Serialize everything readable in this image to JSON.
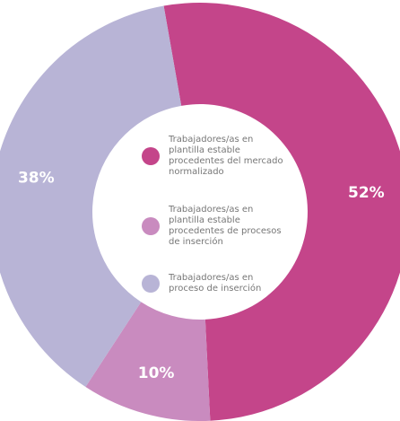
{
  "chart_data": {
    "type": "donut",
    "series": [
      {
        "name": "Trabajadores/as en plantilla estable procedentes del mercado normalizado",
        "color": "#c4458a",
        "values": [
          52
        ],
        "value_labels": [
          "52%"
        ]
      },
      {
        "name": "Trabajadores/as en plantilla estable procedentes de procesos de inserción",
        "color": "#c98bbf",
        "values": [
          10
        ],
        "value_labels": [
          "10%"
        ]
      },
      {
        "name": "Trabajadores/as en proceso de inserción",
        "color": "#b8b4d6",
        "values": [
          38
        ],
        "value_labels": [
          "38%"
        ]
      }
    ]
  }
}
